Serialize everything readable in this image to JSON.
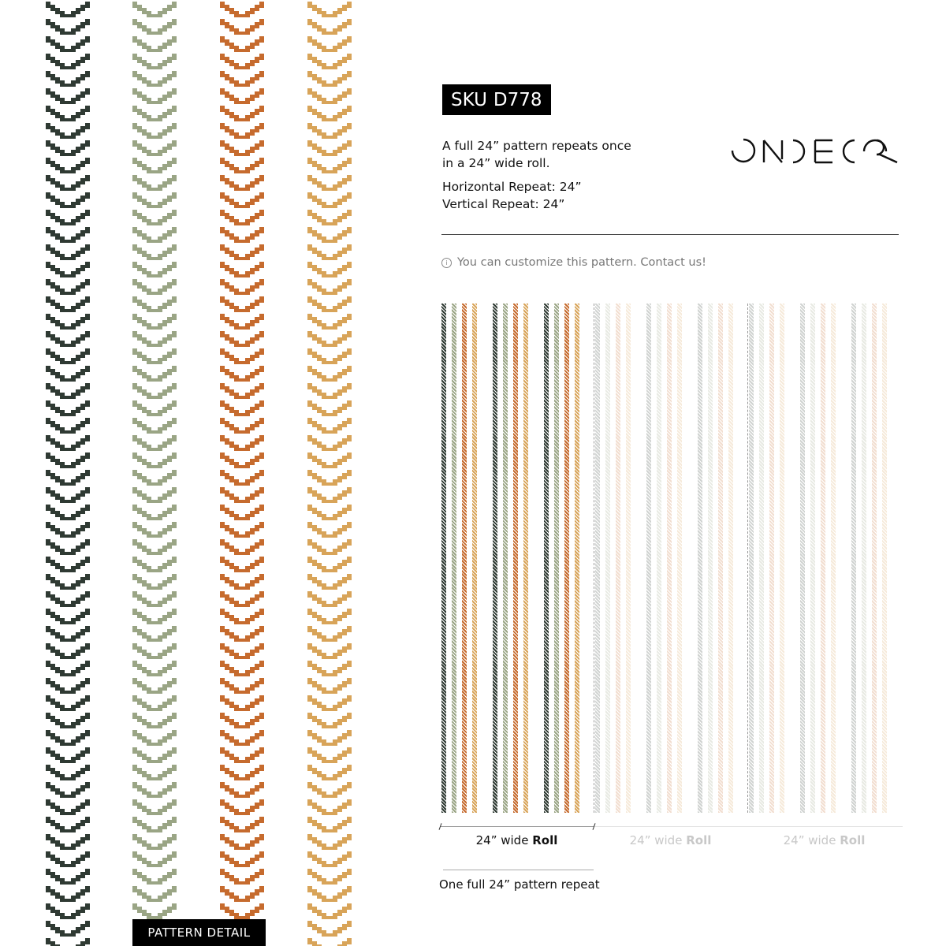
{
  "pattern_detail": {
    "label": "PATTERN DETAIL",
    "stripe_colors": [
      "#2f3a33",
      "#9aa585",
      "#c66b2e",
      "#d8a459"
    ]
  },
  "sku": {
    "prefix": "SKU",
    "code": "D778"
  },
  "description": {
    "line1": "A full 24” pattern repeats once",
    "line2": "in a 24” wide roll."
  },
  "repeats": {
    "horizontal": "Horizontal Repeat: 24”",
    "vertical": "Vertical Repeat: 24”"
  },
  "brand": {
    "logo_text": "ONDECOR"
  },
  "notice": {
    "icon": "info-icon",
    "text": "You can customize this pattern. Contact us!"
  },
  "rolls": [
    {
      "label_prefix": "24” wide ",
      "label_bold": "Roll",
      "active": true
    },
    {
      "label_prefix": "24” wide ",
      "label_bold": "Roll",
      "active": false
    },
    {
      "label_prefix": "24” wide ",
      "label_bold": "Roll",
      "active": false
    }
  ],
  "pattern_repeat_label": "One full 24” pattern repeat"
}
